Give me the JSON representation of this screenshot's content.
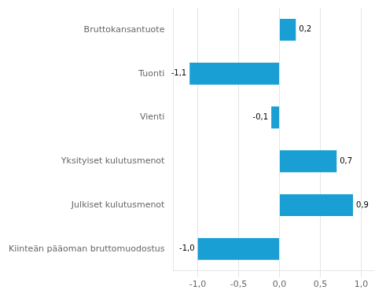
{
  "chart_data": {
    "type": "bar",
    "orientation": "horizontal",
    "categories": [
      "Kiinteän pääoman bruttomuodostus",
      "Julkiset kulutusmenot",
      "Yksityiset kulutusmenot",
      "Vienti",
      "Tuonti",
      "Bruttokansantuote"
    ],
    "values": [
      -1.0,
      0.9,
      0.7,
      -0.1,
      -1.1,
      0.2
    ],
    "value_labels": [
      "-1,0",
      "0,9",
      "0,7",
      "-0,1",
      "-1,1",
      "0,2"
    ],
    "data_labels": true,
    "color": "#1a9fd4",
    "xlim": [
      -1.3,
      1.15
    ],
    "xticks": [
      {
        "value": -1.0,
        "label": "-1,0"
      },
      {
        "value": -0.5,
        "label": "-0,5"
      },
      {
        "value": 0.0,
        "label": "0,0"
      },
      {
        "value": 0.5,
        "label": "0,5"
      },
      {
        "value": 1.0,
        "label": "1,0"
      }
    ],
    "grid": true
  }
}
